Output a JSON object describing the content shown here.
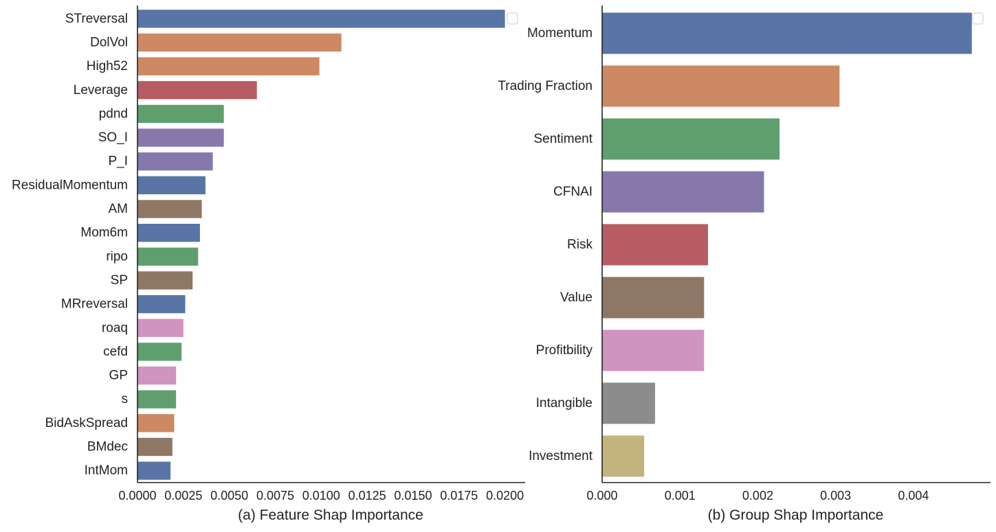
{
  "chart_data": [
    {
      "type": "bar",
      "orientation": "horizontal",
      "xlabel": "(a) Feature Shap Importance",
      "xlim": [
        0,
        0.0211
      ],
      "xticks": [
        "0.0000",
        "0.0025",
        "0.0050",
        "0.0075",
        "0.0100",
        "0.0125",
        "0.0150",
        "0.0175",
        "0.0200"
      ],
      "xtick_values": [
        0,
        0.0025,
        0.005,
        0.0075,
        0.01,
        0.0125,
        0.015,
        0.0175,
        0.02
      ],
      "legend": "top-right (empty)",
      "grid": false,
      "categories": [
        "STreversal",
        "DolVol",
        "High52",
        "Leverage",
        "pdnd",
        "SO_I",
        "P_I",
        "ResidualMomentum",
        "AM",
        "Mom6m",
        "ripo",
        "SP",
        "MRreversal",
        "roaq",
        "cefd",
        "GP",
        "s",
        "BidAskSpread",
        "BMdec",
        "IntMom"
      ],
      "values": [
        0.02,
        0.0111,
        0.0099,
        0.0065,
        0.0047,
        0.0047,
        0.0041,
        0.0037,
        0.0035,
        0.0034,
        0.0033,
        0.003,
        0.0026,
        0.0025,
        0.0024,
        0.0021,
        0.0021,
        0.002,
        0.0019,
        0.0018
      ],
      "colors": [
        "#5875a6",
        "#cd8864",
        "#cd8864",
        "#b75c63",
        "#5f9f6e",
        "#8778ac",
        "#8778ac",
        "#5875a6",
        "#8e7764",
        "#5875a6",
        "#5f9f6e",
        "#8e7764",
        "#5875a6",
        "#cf94c0",
        "#5f9f6e",
        "#cf94c0",
        "#5f9f6e",
        "#cd8864",
        "#8e7764",
        "#5875a6"
      ]
    },
    {
      "type": "bar",
      "orientation": "horizontal",
      "xlabel": "(b) Group Shap Importance",
      "xlim": [
        0,
        0.00499
      ],
      "xticks": [
        "0.000",
        "0.001",
        "0.002",
        "0.003",
        "0.004"
      ],
      "xtick_values": [
        0,
        0.001,
        0.002,
        0.003,
        0.004
      ],
      "legend": "top-right (empty)",
      "grid": false,
      "categories": [
        "Momentum",
        "Trading Fraction",
        "Sentiment",
        "CFNAI",
        "Risk",
        "Value",
        "Profitbility",
        "Intangible",
        "Investment"
      ],
      "values": [
        0.00475,
        0.00305,
        0.00228,
        0.00208,
        0.00136,
        0.00131,
        0.00131,
        0.00068,
        0.00054
      ],
      "colors": [
        "#5875a6",
        "#cd8864",
        "#5f9f6e",
        "#8778ac",
        "#b75c63",
        "#8e7764",
        "#cf94c0",
        "#8c8c8c",
        "#c3b47e"
      ]
    }
  ]
}
